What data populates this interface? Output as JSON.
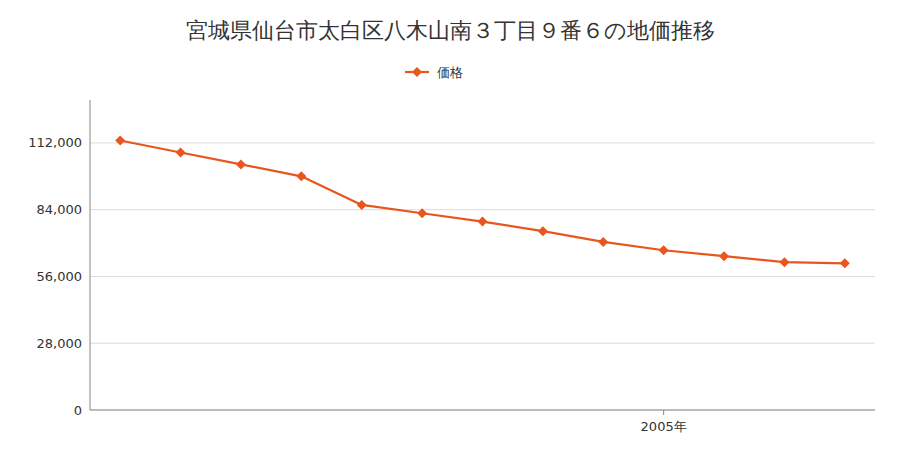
{
  "chart_data": {
    "type": "line",
    "title": "宮城県仙台市太白区八木山南３丁目９番６の地価推移",
    "x": [
      1996,
      1997,
      1998,
      1999,
      2000,
      2001,
      2002,
      2003,
      2004,
      2005,
      2006,
      2007,
      2008
    ],
    "series": [
      {
        "name": "価格",
        "color": "#e8561e",
        "marker": "diamond",
        "values": [
          113000,
          108000,
          103000,
          98000,
          86000,
          82500,
          79000,
          75000,
          70500,
          67000,
          64500,
          62000,
          61500
        ]
      }
    ],
    "xlim": [
      1995.5,
      2008.5
    ],
    "xticks": [
      {
        "value": 2005,
        "label": "2005年"
      }
    ],
    "ylim": [
      0,
      130000
    ],
    "yticks": [
      0,
      {
        "value": 28000,
        "label": "28,000"
      },
      {
        "value": 56000,
        "label": "56,000"
      },
      {
        "value": 84000,
        "label": "84,000"
      },
      {
        "value": 112000,
        "label": "112,000"
      }
    ],
    "grid": true,
    "legend": "top"
  }
}
